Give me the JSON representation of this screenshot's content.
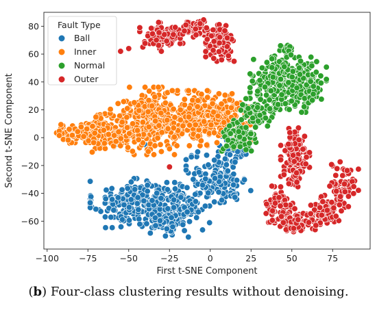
{
  "caption": {
    "tag": "b",
    "text": "Four-class clustering results without denoising."
  },
  "chart_data": {
    "type": "scatter",
    "xlabel": "First t-SNE Component",
    "ylabel": "Second t-SNE Component",
    "xlim": [
      -102,
      98
    ],
    "ylim": [
      -80,
      90
    ],
    "xticks": [
      -100,
      -75,
      -50,
      -25,
      0,
      25,
      50,
      75
    ],
    "yticks": [
      -60,
      -40,
      -20,
      0,
      20,
      40,
      60,
      80
    ],
    "grid": false,
    "legend": {
      "title": "Fault Type",
      "placement": "top-left"
    },
    "series": [
      {
        "name": "Ball",
        "color": "#1f77b4",
        "clusters": [
          {
            "cx": -45,
            "cy": -47,
            "sx": 13,
            "sy": 8,
            "n": 260
          },
          {
            "cx": -18,
            "cy": -52,
            "sx": 8,
            "sy": 9,
            "n": 120
          },
          {
            "cx": 5,
            "cy": -30,
            "sx": 9,
            "sy": 9,
            "n": 130
          },
          {
            "cx": -30,
            "cy": -62,
            "sx": 6,
            "sy": 4,
            "n": 40
          },
          {
            "cx": 15,
            "cy": -8,
            "sx": 5,
            "sy": 6,
            "n": 40
          }
        ],
        "points": [
          [
            -58,
            -5
          ],
          [
            -55,
            -5
          ],
          [
            -40,
            -5
          ],
          [
            -25,
            -7
          ],
          [
            11,
            9
          ]
        ]
      },
      {
        "name": "Inner",
        "color": "#ff7f0e",
        "clusters": [
          {
            "cx": -80,
            "cy": 3,
            "sx": 8,
            "sy": 3.5,
            "n": 80
          },
          {
            "cx": -60,
            "cy": 5,
            "sx": 8,
            "sy": 7,
            "n": 150
          },
          {
            "cx": -38,
            "cy": 12,
            "sx": 9,
            "sy": 11,
            "n": 240
          },
          {
            "cx": -12,
            "cy": 14,
            "sx": 10,
            "sy": 9,
            "n": 200
          },
          {
            "cx": 8,
            "cy": 14,
            "sx": 8,
            "sy": 8,
            "n": 130
          },
          {
            "cx": 18,
            "cy": 2,
            "sx": 4,
            "sy": 5,
            "n": 40
          }
        ],
        "points": [
          [
            -38,
            -10
          ],
          [
            -30,
            -10
          ],
          [
            -25,
            -8
          ]
        ]
      },
      {
        "name": "Normal",
        "color": "#2ca02c",
        "clusters": [
          {
            "cx": 42,
            "cy": 40,
            "sx": 8,
            "sy": 9,
            "n": 180
          },
          {
            "cx": 58,
            "cy": 38,
            "sx": 6,
            "sy": 9,
            "n": 130
          },
          {
            "cx": 28,
            "cy": 17,
            "sx": 5,
            "sy": 6,
            "n": 60
          },
          {
            "cx": 17,
            "cy": 0,
            "sx": 5,
            "sy": 6,
            "n": 70
          },
          {
            "cx": 47,
            "cy": 62,
            "sx": 3,
            "sy": 2.5,
            "n": 25
          }
        ],
        "points": [
          [
            8,
            -8
          ],
          [
            10,
            -6
          ],
          [
            24,
            -4
          ]
        ]
      },
      {
        "name": "Outer",
        "color": "#d62728",
        "clusters": [
          {
            "cx": -30,
            "cy": 73,
            "sx": 6,
            "sy": 4.5,
            "n": 90
          },
          {
            "cx": -10,
            "cy": 78,
            "sx": 6,
            "sy": 3,
            "n": 60
          },
          {
            "cx": 6,
            "cy": 68,
            "sx": 4,
            "sy": 6,
            "n": 90
          },
          {
            "cx": 52,
            "cy": -15,
            "sx": 4,
            "sy": 10,
            "n": 140
          },
          {
            "cx": 43,
            "cy": -48,
            "sx": 4,
            "sy": 6,
            "n": 60
          },
          {
            "cx": 52,
            "cy": -61,
            "sx": 7,
            "sy": 3,
            "n": 80
          },
          {
            "cx": 70,
            "cy": -52,
            "sx": 4,
            "sy": 5,
            "n": 60
          },
          {
            "cx": 82,
            "cy": -35,
            "sx": 4,
            "sy": 8,
            "n": 70
          }
        ],
        "points": [
          [
            -55,
            62
          ],
          [
            -50,
            64
          ],
          [
            -30,
            62
          ],
          [
            -25,
            -21
          ]
        ]
      }
    ]
  }
}
